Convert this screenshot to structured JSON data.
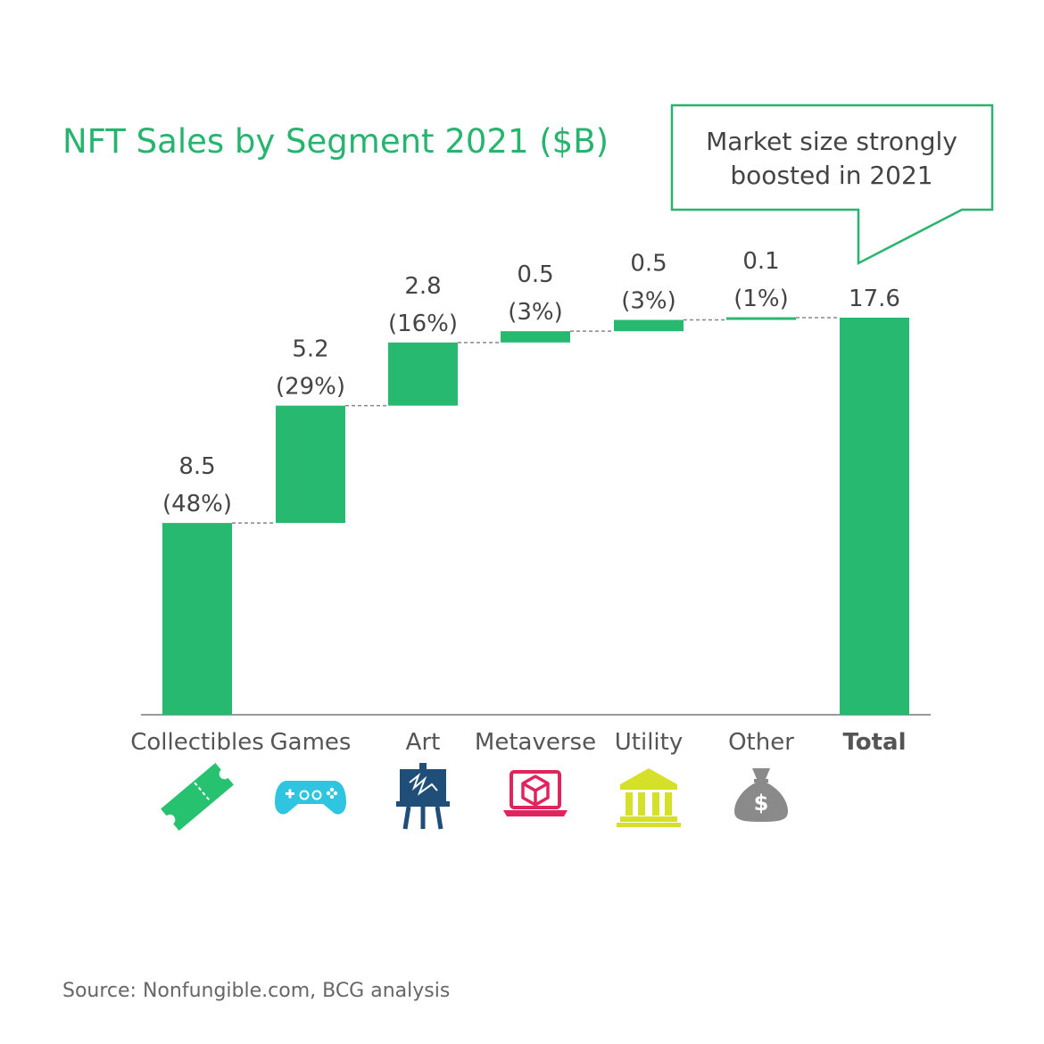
{
  "title": "NFT Sales by Segment 2021  ($B)",
  "callout": {
    "line1": "Market size strongly",
    "line2": "boosted in 2021",
    "border_color": "#27b46e"
  },
  "source": "Source: Nonfungible.com, BCG analysis",
  "colors": {
    "bar": "#27b96f",
    "title": "#27b46e",
    "axis": "#999999",
    "connector": "#888888"
  },
  "chart_data": {
    "type": "waterfall",
    "categories": [
      "Collectibles",
      "Games",
      "Art",
      "Metaverse",
      "Utility",
      "Other",
      "Total"
    ],
    "values": [
      8.5,
      5.2,
      2.8,
      0.5,
      0.5,
      0.1,
      17.6
    ],
    "value_labels": [
      "8.5",
      "5.2",
      "2.8",
      "0.5",
      "0.5",
      "0.1",
      "17.6"
    ],
    "share_labels": [
      "(48%)",
      "(29%)",
      "(16%)",
      "(3%)",
      "(3%)",
      "(1%)",
      ""
    ],
    "total_index": 6,
    "ylim": [
      0,
      17.6
    ],
    "icons": [
      "ticket-icon",
      "gamepad-icon",
      "easel-icon",
      "metaverse-laptop-icon",
      "bank-icon",
      "money-bag-icon",
      ""
    ],
    "icon_colors": [
      "#27c26f",
      "#2fc4e0",
      "#1f4e79",
      "#e0245e",
      "#d4e02a",
      "#8a8a8a",
      ""
    ]
  }
}
